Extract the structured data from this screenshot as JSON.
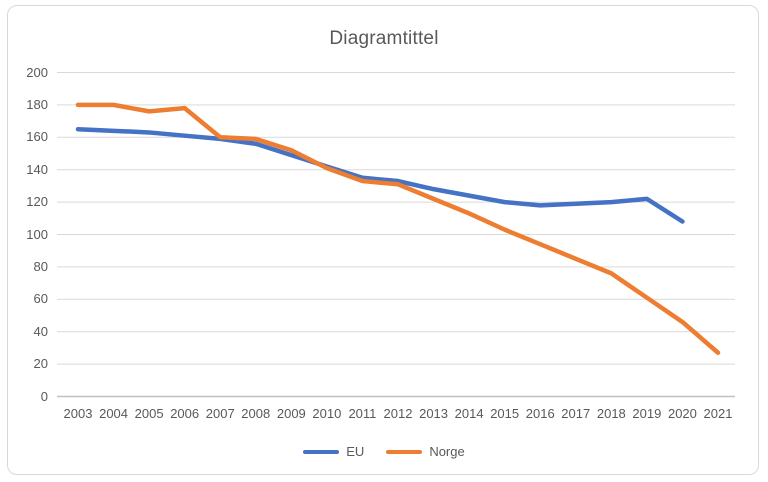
{
  "chart_data": {
    "type": "line",
    "title": "Diagramtittel",
    "categories": [
      "2003",
      "2004",
      "2005",
      "2006",
      "2007",
      "2008",
      "2009",
      "2010",
      "2011",
      "2012",
      "2013",
      "2014",
      "2015",
      "2016",
      "2017",
      "2018",
      "2019",
      "2020",
      "2021"
    ],
    "series": [
      {
        "name": "EU",
        "color": "#4472C4",
        "values": [
          165,
          164,
          163,
          161,
          159,
          156,
          149,
          142,
          135,
          133,
          128,
          124,
          120,
          118,
          119,
          120,
          122,
          108,
          null
        ]
      },
      {
        "name": "Norge",
        "color": "#ED7D31",
        "values": [
          180,
          180,
          176,
          178,
          160,
          159,
          152,
          141,
          133,
          131,
          122,
          113,
          103,
          94,
          85,
          76,
          61,
          46,
          27
        ]
      }
    ],
    "ylim": [
      0,
      200
    ],
    "ytick_step": 20,
    "yticks": [
      0,
      20,
      40,
      60,
      80,
      100,
      120,
      140,
      160,
      180,
      200
    ],
    "grid": true,
    "legend_position": "bottom"
  },
  "colors": {
    "title_text": "#595959",
    "tick_text": "#595959",
    "gridline": "#d9d9d9",
    "axis_line": "#bfbfbf",
    "frame_border": "#d9d9d9",
    "background": "#ffffff"
  }
}
